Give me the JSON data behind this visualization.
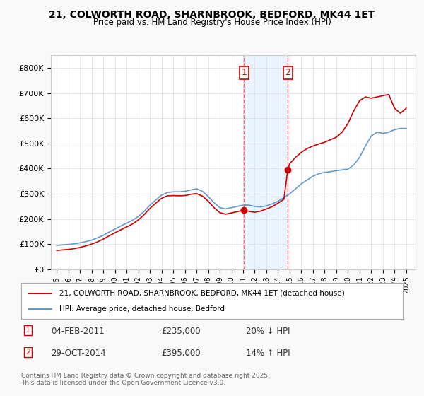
{
  "title": "21, COLWORTH ROAD, SHARNBROOK, BEDFORD, MK44 1ET",
  "subtitle": "Price paid vs. HM Land Registry's House Price Index (HPI)",
  "background_color": "#f9f9f9",
  "plot_bg_color": "#ffffff",
  "xlabel": "",
  "ylabel": "",
  "ylim": [
    0,
    850000
  ],
  "yticks": [
    0,
    100000,
    200000,
    300000,
    400000,
    500000,
    600000,
    700000,
    800000
  ],
  "ytick_labels": [
    "£0",
    "£100K",
    "£200K",
    "£300K",
    "£400K",
    "£500K",
    "£600K",
    "£700K",
    "£800K"
  ],
  "xlim_start": 1994.5,
  "xlim_end": 2025.8,
  "xticks": [
    1995,
    1996,
    1997,
    1998,
    1999,
    2000,
    2001,
    2002,
    2003,
    2004,
    2005,
    2006,
    2007,
    2008,
    2009,
    2010,
    2011,
    2012,
    2013,
    2014,
    2015,
    2016,
    2017,
    2018,
    2019,
    2020,
    2021,
    2022,
    2023,
    2024,
    2025
  ],
  "sale1_date": 2011.09,
  "sale1_price": 235000,
  "sale1_label": "1",
  "sale1_date_str": "04-FEB-2011",
  "sale1_price_str": "£235,000",
  "sale1_hpi_str": "20% ↓ HPI",
  "sale2_date": 2014.83,
  "sale2_price": 395000,
  "sale2_label": "2",
  "sale2_date_str": "29-OCT-2014",
  "sale2_price_str": "£395,000",
  "sale2_hpi_str": "14% ↑ HPI",
  "red_line_color": "#cc0000",
  "blue_line_color": "#6699cc",
  "sale_dot_color": "#cc0000",
  "vline_color": "#ff6666",
  "shade_color": "#ddeeff",
  "legend_box_color": "#cc0000",
  "legend1_label": "21, COLWORTH ROAD, SHARNBROOK, BEDFORD, MK44 1ET (detached house)",
  "legend2_label": "HPI: Average price, detached house, Bedford",
  "footer": "Contains HM Land Registry data © Crown copyright and database right 2025.\nThis data is licensed under the Open Government Licence v3.0.",
  "hpi_data_x": [
    1995,
    1995.5,
    1996,
    1996.5,
    1997,
    1997.5,
    1998,
    1998.5,
    1999,
    1999.5,
    2000,
    2000.5,
    2001,
    2001.5,
    2002,
    2002.5,
    2003,
    2003.5,
    2004,
    2004.5,
    2005,
    2005.5,
    2006,
    2006.5,
    2007,
    2007.5,
    2008,
    2008.5,
    2009,
    2009.5,
    2010,
    2010.5,
    2011,
    2011.5,
    2012,
    2012.5,
    2013,
    2013.5,
    2014,
    2014.5,
    2015,
    2015.5,
    2016,
    2016.5,
    2017,
    2017.5,
    2018,
    2018.5,
    2019,
    2019.5,
    2020,
    2020.5,
    2021,
    2021.5,
    2022,
    2022.5,
    2023,
    2023.5,
    2024,
    2024.5,
    2025
  ],
  "hpi_data_y": [
    95000,
    97000,
    99000,
    101000,
    105000,
    110000,
    116000,
    125000,
    135000,
    148000,
    160000,
    172000,
    183000,
    195000,
    210000,
    230000,
    255000,
    275000,
    295000,
    305000,
    308000,
    308000,
    310000,
    315000,
    320000,
    310000,
    290000,
    265000,
    245000,
    240000,
    245000,
    250000,
    255000,
    255000,
    250000,
    248000,
    252000,
    260000,
    270000,
    285000,
    300000,
    320000,
    340000,
    355000,
    370000,
    380000,
    385000,
    388000,
    392000,
    395000,
    398000,
    415000,
    445000,
    490000,
    530000,
    545000,
    540000,
    545000,
    555000,
    560000,
    560000
  ],
  "red_data_x": [
    1995,
    1995.5,
    1996,
    1996.5,
    1997,
    1997.5,
    1998,
    1998.5,
    1999,
    1999.5,
    2000,
    2000.5,
    2001,
    2001.5,
    2002,
    2002.5,
    2003,
    2003.5,
    2004,
    2004.5,
    2005,
    2005.5,
    2006,
    2006.5,
    2007,
    2007.5,
    2008,
    2008.5,
    2009,
    2009.5,
    2010,
    2010.5,
    2011,
    2011.083,
    2011.5,
    2012,
    2012.5,
    2013,
    2013.5,
    2014,
    2014.5,
    2014.83,
    2015,
    2015.5,
    2016,
    2016.5,
    2017,
    2017.5,
    2018,
    2018.5,
    2019,
    2019.5,
    2020,
    2020.5,
    2021,
    2021.5,
    2022,
    2022.5,
    2023,
    2023.5,
    2024,
    2024.5,
    2025
  ],
  "red_data_y": [
    75000,
    77000,
    79000,
    82000,
    87000,
    93000,
    100000,
    109000,
    120000,
    133000,
    145000,
    157000,
    168000,
    180000,
    196000,
    217000,
    242000,
    263000,
    282000,
    292000,
    293000,
    292000,
    293000,
    298000,
    301000,
    291000,
    271000,
    245000,
    225000,
    219000,
    224000,
    229000,
    235000,
    235000,
    230000,
    227000,
    231000,
    240000,
    249000,
    263000,
    278000,
    395000,
    420000,
    445000,
    465000,
    480000,
    490000,
    498000,
    505000,
    515000,
    525000,
    545000,
    580000,
    630000,
    670000,
    685000,
    680000,
    685000,
    690000,
    695000,
    640000,
    620000,
    640000
  ]
}
